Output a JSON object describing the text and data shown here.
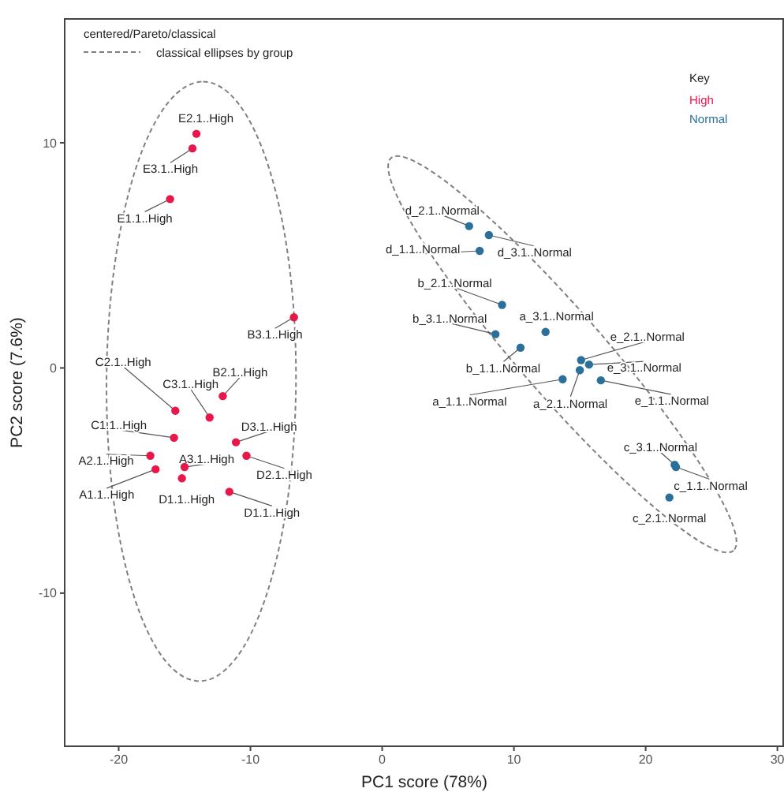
{
  "chart_data": {
    "type": "scatter",
    "xlabel": "PC1 score (78%)",
    "ylabel": "PC2 score (7.6%)",
    "xlim": [
      -24.1,
      30.5
    ],
    "ylim": [
      -16.8,
      15.5
    ],
    "xticks": [
      -20,
      -10,
      0,
      10,
      20,
      30
    ],
    "yticks": [
      -10,
      0,
      10
    ],
    "grid": false,
    "legend": "top right",
    "legend_title": "Key",
    "marker": "circle",
    "annotations": [
      "centered/Pareto/classical",
      "classical ellipses by group",
      {
        "text": "E2.1..High",
        "x": -14.1,
        "y": 10.4
      },
      {
        "text": "E3.1..High",
        "x": -14.4,
        "y": 9.75
      },
      {
        "text": "E1.1..High",
        "x": -16.1,
        "y": 7.5
      },
      {
        "text": "B3.1..High",
        "x": -6.7,
        "y": 2.25
      },
      {
        "text": "C2.1..High",
        "x": -15.7,
        "y": -1.9
      },
      {
        "text": "C3.1..High",
        "x": -13.1,
        "y": -2.2
      },
      {
        "text": "B2.1..High",
        "x": -12.1,
        "y": -1.25
      },
      {
        "text": "C1.1..High",
        "x": -15.8,
        "y": -3.1
      },
      {
        "text": "A2.1..High",
        "x": -17.6,
        "y": -3.9
      },
      {
        "text": "A1.1..High",
        "x": -17.2,
        "y": -4.5
      },
      {
        "text": "A3.1..High",
        "x": -15.0,
        "y": -4.4
      },
      {
        "text": "D1.1..High",
        "x": -15.2,
        "y": -4.9
      },
      {
        "text": "D3.1..High",
        "x": -11.1,
        "y": -3.3
      },
      {
        "text": "D2.1..High",
        "x": -10.3,
        "y": -3.9
      },
      {
        "text": "D1.1..High",
        "x": -11.6,
        "y": -5.5
      },
      {
        "text": "d_2.1..Normal",
        "x": 6.6,
        "y": 6.3
      },
      {
        "text": "d_3.1..Normal",
        "x": 8.1,
        "y": 5.9
      },
      {
        "text": "d_1.1..Normal",
        "x": 7.4,
        "y": 5.2
      },
      {
        "text": "b_2.1..Normal",
        "x": 9.1,
        "y": 2.8
      },
      {
        "text": "a_3.1..Normal",
        "x": 12.4,
        "y": 1.6
      },
      {
        "text": "b_3.1..Normal",
        "x": 8.6,
        "y": 1.5
      },
      {
        "text": "b_1.1..Normal",
        "x": 10.5,
        "y": 0.9
      },
      {
        "text": "e_2.1..Normal",
        "x": 15.1,
        "y": 0.35
      },
      {
        "text": "e_3.1..Normal",
        "x": 15.7,
        "y": 0.15
      },
      {
        "text": "a_2.1..Normal",
        "x": 15.0,
        "y": -0.1
      },
      {
        "text": "a_1.1..Normal",
        "x": 13.7,
        "y": -0.5
      },
      {
        "text": "e_1.1..Normal",
        "x": 16.6,
        "y": -0.55
      },
      {
        "text": "c_3.1..Normal",
        "x": 22.2,
        "y": -4.3
      },
      {
        "text": "c_1.1..Normal",
        "x": 22.3,
        "y": -4.4
      },
      {
        "text": "c_2.1..Normal",
        "x": 21.8,
        "y": -5.75
      }
    ],
    "series": [
      {
        "name": "High",
        "color": "#e8174a",
        "x": [
          -14.1,
          -14.4,
          -16.1,
          -6.7,
          -15.7,
          -13.1,
          -12.1,
          -15.8,
          -17.6,
          -17.2,
          -15.0,
          -15.2,
          -11.1,
          -10.3,
          -11.6
        ],
        "values": [
          10.4,
          9.75,
          7.5,
          2.25,
          -1.9,
          -2.2,
          -1.25,
          -3.1,
          -3.9,
          -4.5,
          -4.4,
          -4.9,
          -3.3,
          -3.9,
          -5.5
        ]
      },
      {
        "name": "Normal",
        "color": "#2b6f9b",
        "x": [
          6.6,
          8.1,
          7.4,
          9.1,
          12.4,
          8.6,
          10.5,
          15.1,
          15.7,
          15.0,
          13.7,
          16.6,
          22.2,
          22.3,
          21.8
        ],
        "values": [
          6.3,
          5.9,
          5.2,
          2.8,
          1.6,
          1.5,
          0.9,
          0.35,
          0.15,
          -0.1,
          -0.5,
          -0.55,
          -4.3,
          -4.4,
          -5.75
        ]
      }
    ]
  }
}
